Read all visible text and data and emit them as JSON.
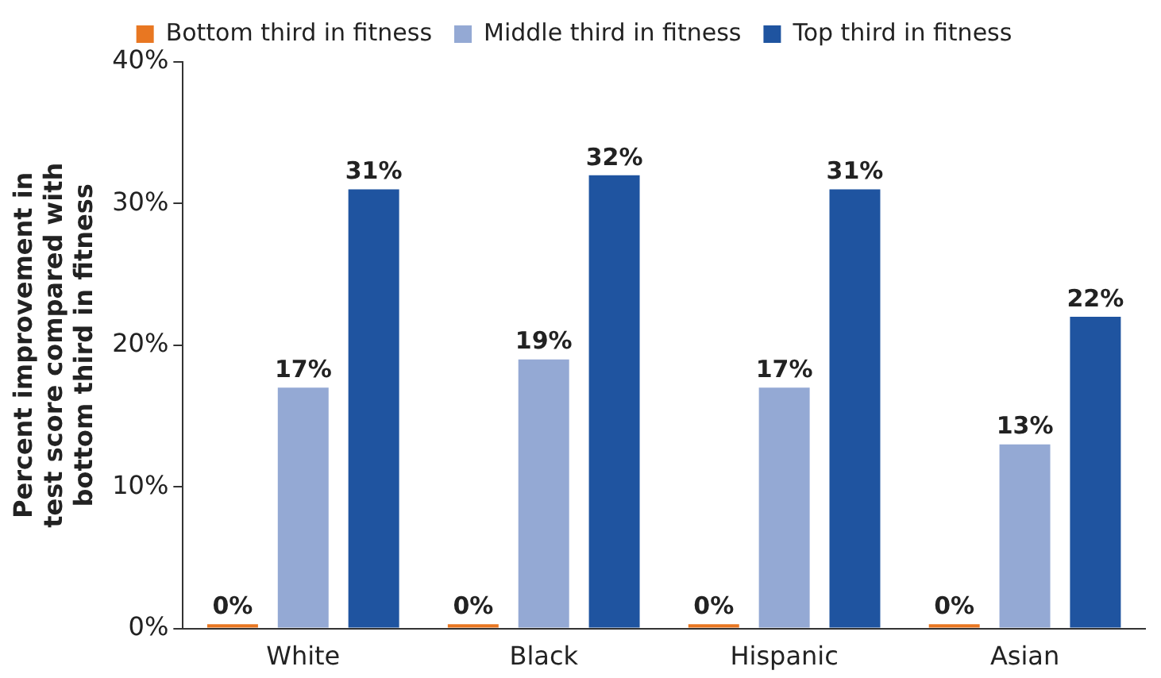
{
  "chart_data": {
    "type": "bar",
    "ylabel": "Percent improvement in test score compared with bottom third in fitness",
    "categories": [
      "White",
      "Black",
      "Hispanic",
      "Asian"
    ],
    "series": [
      {
        "name": "Bottom third in fitness",
        "color": "#e87722",
        "values": [
          0.3,
          0.3,
          0.3,
          0.3
        ],
        "value_labels": [
          "0%",
          "0%",
          "0%",
          "0%"
        ]
      },
      {
        "name": "Middle third in fitness",
        "color": "#94a9d4",
        "values": [
          17,
          19,
          17,
          13
        ],
        "value_labels": [
          "17%",
          "19%",
          "17%",
          "13%"
        ]
      },
      {
        "name": "Top third in fitness",
        "color": "#1f54a0",
        "values": [
          31,
          32,
          31,
          22
        ],
        "value_labels": [
          "31%",
          "32%",
          "31%",
          "22%"
        ]
      }
    ],
    "ylim": [
      0,
      40
    ],
    "yticks": [
      {
        "value": 0,
        "label": "0%"
      },
      {
        "value": 10,
        "label": "10%"
      },
      {
        "value": 20,
        "label": "20%"
      },
      {
        "value": 30,
        "label": "30%"
      },
      {
        "value": 40,
        "label": "40%"
      }
    ],
    "grid": false,
    "legend": "top"
  }
}
